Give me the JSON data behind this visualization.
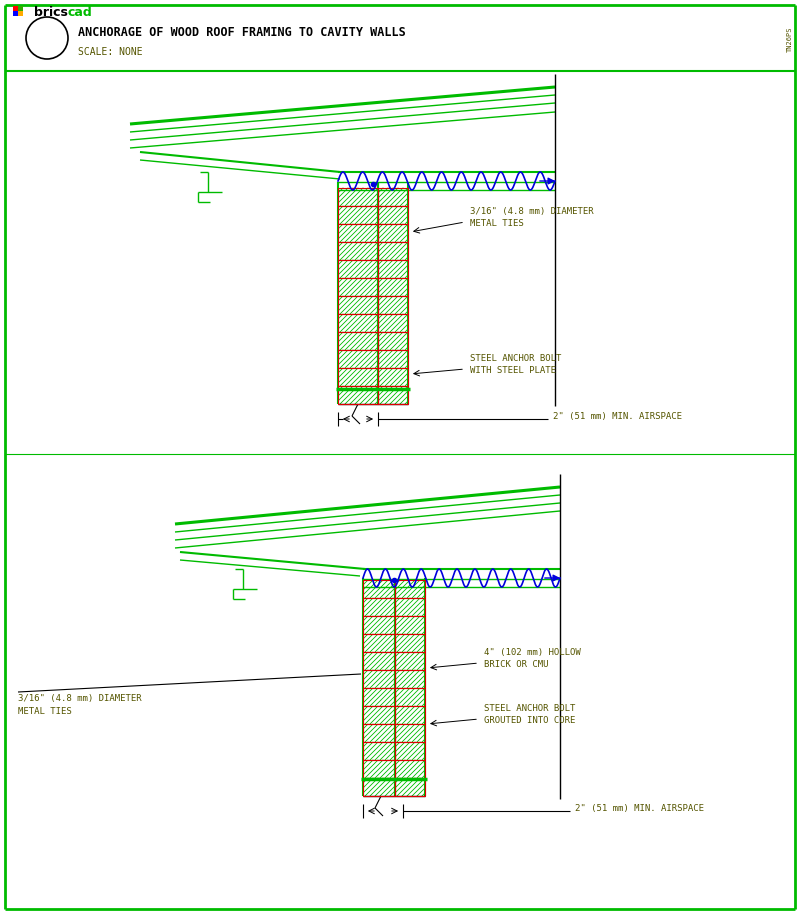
{
  "bg_color": "#ffffff",
  "green": "#00bb00",
  "red": "#dd0000",
  "blue": "#0000dd",
  "black": "#000000",
  "dark_olive": "#555500",
  "title_text": "ANCHORAGE OF WOOD ROOF FRAMING TO CAVITY WALLS",
  "scale_text": "SCALE: NONE",
  "ann1_l1": "3/16\" (4.8 mm) DIAMETER",
  "ann1_l2": "METAL TIES",
  "ann2_l1": "STEEL ANCHOR BOLT",
  "ann2_l2": "WITH STEEL PLATE",
  "ann3": "2\" (51 mm) MIN. AIRSPACE",
  "ann4_l1": "4\" (102 mm) HOLLOW",
  "ann4_l2": "BRICK OR CMU",
  "ann5_l1": "STEEL ANCHOR BOLT",
  "ann5_l2": "GROUTED INTO CORE",
  "ann6": "2\" (51 mm) MIN. AIRSPACE",
  "ann7_l1": "3/16\" (4.8 mm) DIAMETER",
  "ann7_l2": "METAL TIES",
  "side_text": "TN26PS"
}
